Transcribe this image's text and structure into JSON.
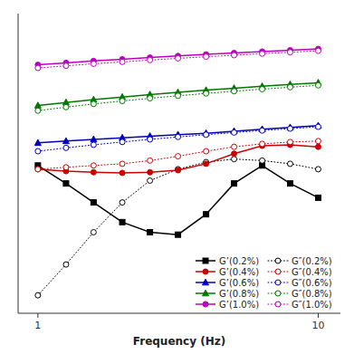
{
  "chart_data": {
    "type": "line",
    "xlabel": "Frequency (Hz)",
    "x": [
      1,
      1.26,
      1.58,
      2.0,
      2.51,
      3.16,
      3.98,
      5.01,
      6.31,
      7.94,
      10.0
    ],
    "log": true,
    "xlim": [
      0.85,
      12
    ],
    "ylim": [
      3,
      15000
    ],
    "xticks": [
      1,
      10
    ],
    "tick_labels": "x",
    "grid": false,
    "legend": "lower right",
    "series": [
      {
        "name": "G’(0.2%)",
        "color": "#000000",
        "marker": "square",
        "line_style": "solid",
        "values": [
          200,
          120,
          70,
          40,
          30,
          28,
          50,
          120,
          200,
          120,
          80
        ]
      },
      {
        "name": "G″(0.2%)",
        "color": "#000000",
        "marker": "circle",
        "line_style": "dotted",
        "values": [
          5,
          12,
          30,
          70,
          130,
          180,
          220,
          240,
          230,
          210,
          180
        ]
      },
      {
        "name": "G’(0.4%)",
        "color": "#cc0000",
        "marker": "circle",
        "line_style": "solid",
        "values": [
          180,
          170,
          165,
          162,
          165,
          175,
          210,
          280,
          350,
          360,
          340
        ]
      },
      {
        "name": "G″(0.4%)",
        "color": "#cc0000",
        "marker": "circle",
        "line_style": "dotted",
        "values": [
          180,
          190,
          200,
          210,
          230,
          260,
          300,
          340,
          370,
          390,
          400
        ]
      },
      {
        "name": "G’(0.6%)",
        "color": "#0000bb",
        "marker": "triangle",
        "line_style": "solid",
        "values": [
          380,
          400,
          420,
          440,
          460,
          480,
          500,
          530,
          560,
          590,
          620
        ]
      },
      {
        "name": "G″(0.6%)",
        "color": "#0000bb",
        "marker": "circle",
        "line_style": "dotted",
        "values": [
          300,
          330,
          360,
          390,
          420,
          450,
          480,
          510,
          540,
          570,
          600
        ]
      },
      {
        "name": "G’(0.8%)",
        "color": "#007700",
        "marker": "triangle",
        "line_style": "solid",
        "values": [
          1100,
          1200,
          1300,
          1400,
          1500,
          1600,
          1700,
          1800,
          1900,
          2000,
          2100
        ]
      },
      {
        "name": "G″(0.8%)",
        "color": "#007700",
        "marker": "circle",
        "line_style": "dotted",
        "values": [
          950,
          1050,
          1150,
          1250,
          1350,
          1450,
          1550,
          1650,
          1750,
          1850,
          1950
        ]
      },
      {
        "name": "G’(1.0%)",
        "color": "#bb00bb",
        "marker": "circle",
        "line_style": "solid",
        "values": [
          3500,
          3700,
          3900,
          4100,
          4300,
          4500,
          4700,
          4900,
          5100,
          5300,
          5500
        ]
      },
      {
        "name": "G″(1.0%)",
        "color": "#bb00bb",
        "marker": "circle",
        "line_style": "dotted",
        "values": [
          3200,
          3400,
          3600,
          3800,
          4000,
          4200,
          4400,
          4600,
          4800,
          5000,
          5200
        ]
      }
    ]
  }
}
